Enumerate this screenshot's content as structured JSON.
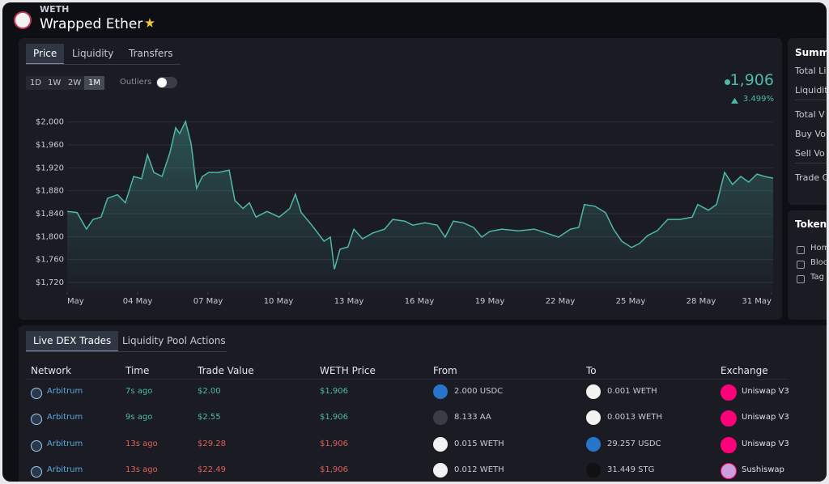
{
  "header": {
    "symbol": "WETH",
    "name": "Wrapped Ether"
  },
  "price_chart": {
    "tabs": [
      "Price",
      "Liquidity",
      "Transfers"
    ],
    "active_tab": 0,
    "ranges": [
      "1D",
      "1W",
      "2W",
      "1M"
    ],
    "active_range": 3,
    "outliers_label": "Outliers",
    "current_price": "1,906",
    "change": "3.499%",
    "chart_data": {
      "type": "line",
      "color": "#4fb8a8",
      "grid": true,
      "x": [
        1.0,
        1.42,
        1.82,
        2.1,
        2.44,
        2.72,
        3.14,
        3.48,
        3.83,
        4.17,
        4.42,
        4.69,
        5.04,
        5.38,
        5.62,
        5.79,
        6.04,
        6.28,
        6.51,
        6.76,
        7.03,
        7.45,
        7.9,
        8.14,
        8.49,
        8.76,
        9.04,
        9.51,
        10.03,
        10.48,
        10.72,
        10.97,
        11.42,
        11.94,
        12.21,
        12.38,
        12.62,
        12.96,
        13.21,
        13.58,
        14.0,
        14.52,
        14.87,
        15.38,
        15.72,
        16.24,
        16.76,
        17.1,
        17.45,
        17.87,
        18.31,
        18.66,
        19.0,
        19.51,
        20.21,
        20.9,
        21.42,
        21.93,
        22.44,
        22.79,
        23.03,
        23.48,
        23.93,
        24.27,
        24.62,
        25.04,
        25.38,
        25.73,
        26.13,
        26.58,
        27.1,
        27.62,
        27.86,
        28.31,
        28.66,
        29.0,
        29.34,
        29.69,
        30.03,
        30.38,
        30.7,
        31.07
      ],
      "values": [
        1844,
        1842,
        1813,
        1830,
        1834,
        1867,
        1873,
        1859,
        1905,
        1901,
        1943,
        1912,
        1905,
        1947,
        1990,
        1980,
        2001,
        1962,
        1884,
        1905,
        1912,
        1912,
        1916,
        1863,
        1849,
        1859,
        1834,
        1844,
        1834,
        1849,
        1874,
        1842,
        1820,
        1792,
        1799,
        1743,
        1778,
        1782,
        1813,
        1796,
        1806,
        1813,
        1830,
        1827,
        1820,
        1824,
        1820,
        1799,
        1827,
        1824,
        1816,
        1799,
        1809,
        1813,
        1810,
        1813,
        1806,
        1799,
        1813,
        1816,
        1856,
        1853,
        1842,
        1813,
        1792,
        1781,
        1788,
        1802,
        1810,
        1830,
        1830,
        1834,
        1856,
        1846,
        1856,
        1912,
        1891,
        1905,
        1895,
        1909,
        1905,
        1902
      ],
      "xlim": [
        1,
        31.07
      ],
      "ylim": [
        1703,
        2025
      ],
      "yticks": [
        {
          "value": 1720,
          "label": "$1,720"
        },
        {
          "value": 1760,
          "label": "$1,760"
        },
        {
          "value": 1800,
          "label": "$1,800"
        },
        {
          "value": 1840,
          "label": "$1,840"
        },
        {
          "value": 1880,
          "label": "$1,880"
        },
        {
          "value": 1920,
          "label": "$1,920"
        },
        {
          "value": 1960,
          "label": "$1,960"
        },
        {
          "value": 2000,
          "label": "$2,000"
        }
      ],
      "xticks": [
        {
          "value": 1,
          "label": "May"
        },
        {
          "value": 4,
          "label": "04 May"
        },
        {
          "value": 7,
          "label": "07 May"
        },
        {
          "value": 10,
          "label": "10 May"
        },
        {
          "value": 13,
          "label": "13 May"
        },
        {
          "value": 16,
          "label": "16 May"
        },
        {
          "value": 19,
          "label": "19 May"
        },
        {
          "value": 22,
          "label": "22 May"
        },
        {
          "value": 25,
          "label": "25 May"
        },
        {
          "value": 28,
          "label": "28 May"
        },
        {
          "value": 31,
          "label": "31 May"
        }
      ]
    }
  },
  "summary": {
    "title": "Summa",
    "items": [
      "Total Li",
      "Liquidit",
      "Total V",
      "Buy Vo",
      "Sell Vo",
      "Trade C"
    ]
  },
  "token": {
    "title": "Token M",
    "links": [
      "Hom",
      "Bloc",
      "Tag"
    ]
  },
  "trades": {
    "tabs": [
      "Live DEX Trades",
      "Liquidity Pool Actions"
    ],
    "active_tab": 0,
    "columns": [
      "Network",
      "Time",
      "Trade Value",
      "WETH Price",
      "From",
      "To",
      "Exchange"
    ],
    "rows": [
      {
        "network": "Arbitrum",
        "time": "7s ago",
        "value": "$2.00",
        "price": "$1,906",
        "from": "2.000 USDC",
        "to": "0.001 WETH",
        "exchange": "Uniswap V3",
        "side": "buy"
      },
      {
        "network": "Arbitrum",
        "time": "9s ago",
        "value": "$2.55",
        "price": "$1,906",
        "from": "8.133 AA",
        "to": "0.0013 WETH",
        "exchange": "Uniswap V3",
        "side": "buy"
      },
      {
        "network": "Arbitrum",
        "time": "13s ago",
        "value": "$29.28",
        "price": "$1,906",
        "from": "0.015 WETH",
        "to": "29.257 USDC",
        "exchange": "Uniswap V3",
        "side": "sell"
      },
      {
        "network": "Arbitrum",
        "time": "13s ago",
        "value": "$22.49",
        "price": "$1,906",
        "from": "0.012 WETH",
        "to": "31.449 STG",
        "exchange": "Sushiswap",
        "side": "sell"
      }
    ]
  }
}
